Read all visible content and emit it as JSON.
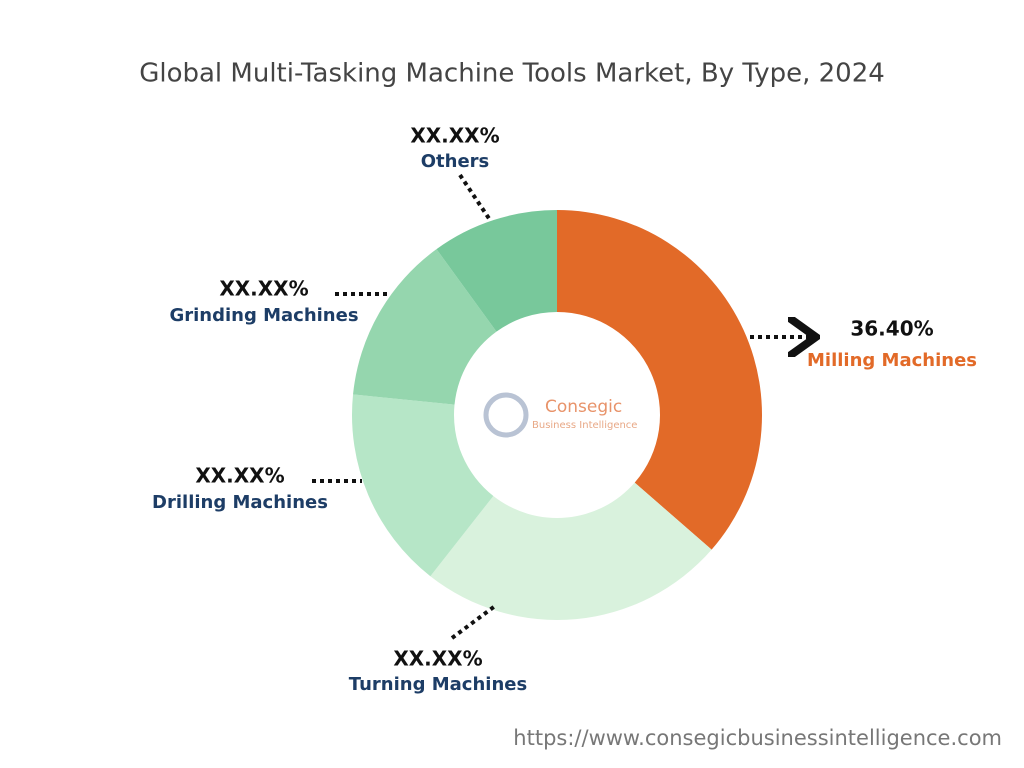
{
  "chart_data": {
    "type": "donut",
    "title": "Global Multi-Tasking Machine Tools Market, By Type, 2024",
    "categories": [
      "Milling Machines",
      "Turning Machines",
      "Drilling Machines",
      "Grinding Machines",
      "Others"
    ],
    "values": [
      36.4,
      24.2,
      16.0,
      13.4,
      10.0
    ],
    "value_labels": [
      "36.40%",
      "XX.XX%",
      "XX.XX%",
      "XX.XX%",
      "XX.XX%"
    ],
    "colors": [
      "#e26a28",
      "#d9f2dd",
      "#b6e6c7",
      "#95d6ae",
      "#78c89b"
    ],
    "label_colors": [
      "#e26a28",
      "#1d3d66",
      "#1d3d66",
      "#1d3d66",
      "#1d3d66"
    ],
    "logo": {
      "name": "Consegic",
      "tagline": "Business Intelligence"
    },
    "source": "https://www.consegicbusinessintelligence.com"
  }
}
